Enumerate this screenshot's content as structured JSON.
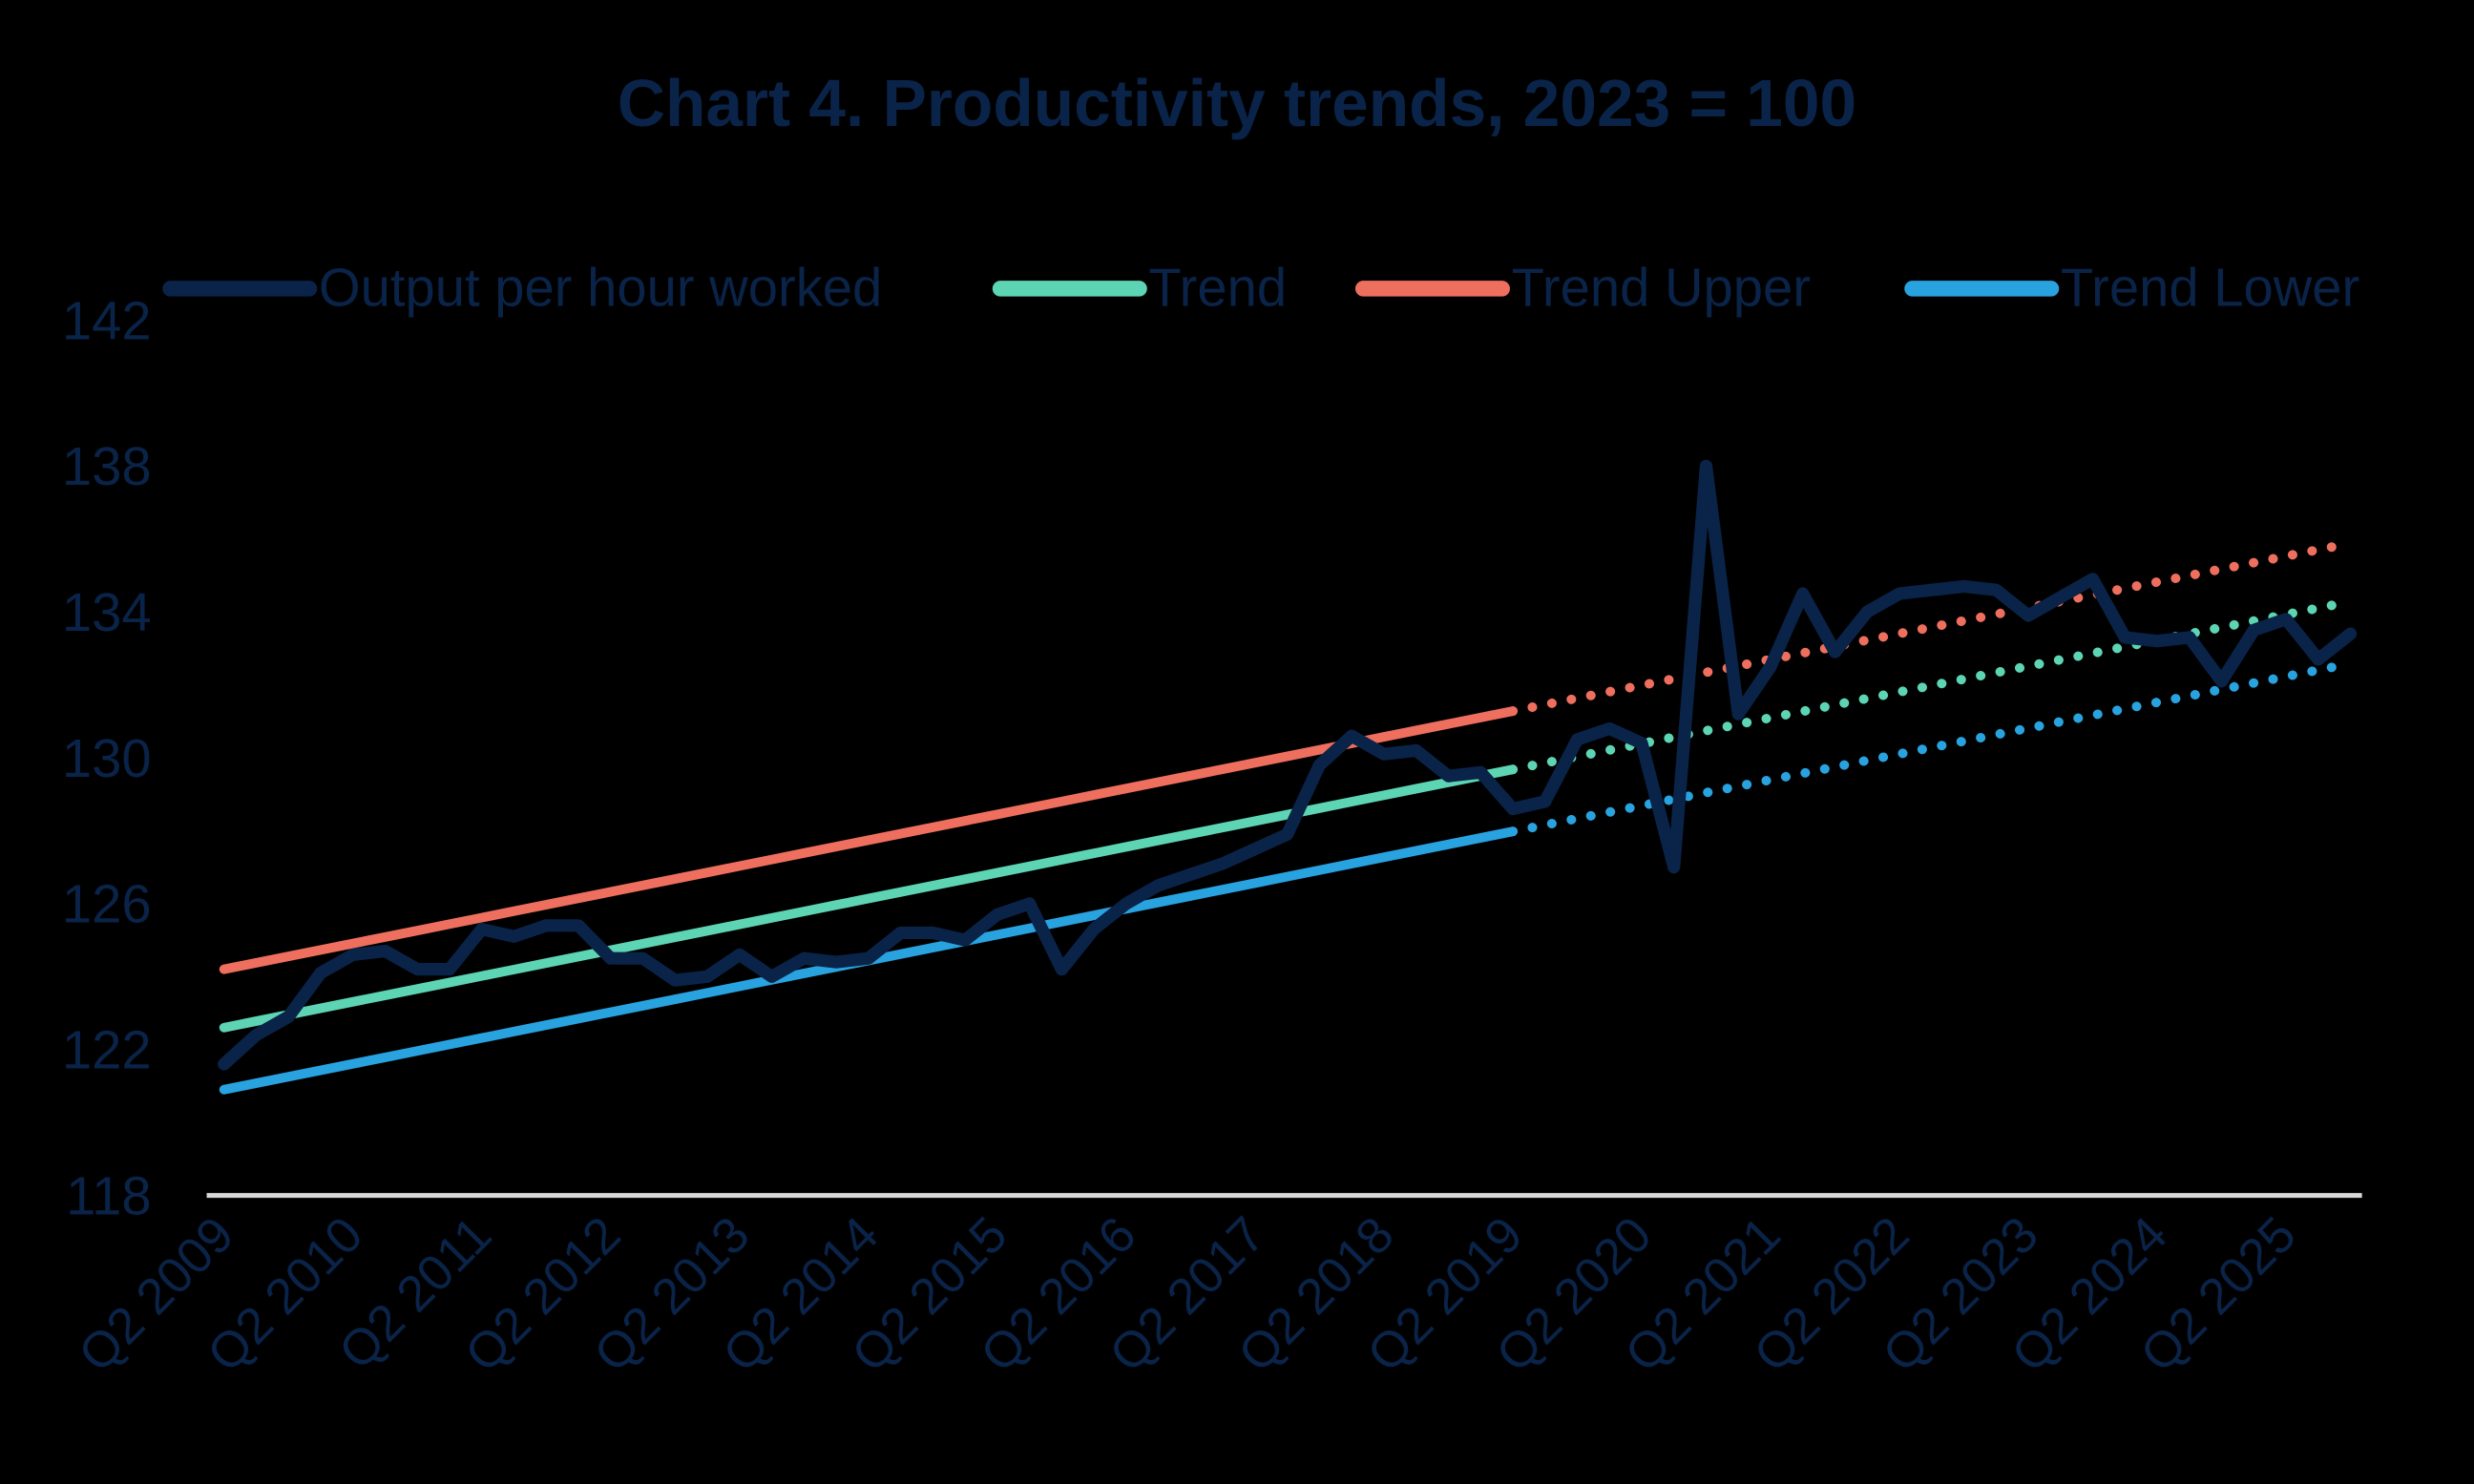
{
  "chart_data": {
    "type": "line",
    "title": "Chart 4. Productivity trends, 2023 = 100",
    "xlabel": "",
    "ylabel": "",
    "ylim": [
      118,
      142
    ],
    "yticks": [
      118,
      122,
      126,
      130,
      134,
      138,
      142
    ],
    "xtick_labels": [
      "Q2 2009",
      "Q2 2010",
      "Q2 2011",
      "Q2 2012",
      "Q2 2013",
      "Q2 2014",
      "Q2 2015",
      "Q2 2016",
      "Q2 2017",
      "Q2 2018",
      "Q2 2019",
      "Q2 2020",
      "Q2 2021",
      "Q2 2022",
      "Q2 2023",
      "Q2 2024",
      "Q2 2025"
    ],
    "grid": false,
    "legend_position": "top",
    "x_start": "Q2 2009",
    "n_points": 67,
    "trend_solid_until_index": 40,
    "series": [
      {
        "name": "Output per hour worked",
        "color": "#0a2348",
        "style": "solid",
        "values": [
          121.6,
          122.4,
          122.9,
          124.1,
          124.6,
          124.7,
          124.2,
          124.2,
          125.3,
          125.1,
          125.4,
          125.4,
          124.5,
          124.5,
          123.9,
          124.0,
          124.6,
          124.0,
          124.5,
          124.4,
          124.5,
          125.2,
          125.2,
          125.0,
          125.7,
          126.0,
          124.2,
          125.3,
          126.0,
          126.5,
          126.8,
          127.1,
          127.5,
          127.9,
          129.8,
          130.6,
          130.1,
          130.2,
          129.5,
          129.6,
          128.6,
          128.8,
          130.5,
          130.8,
          130.4,
          127.0,
          138.0,
          131.2,
          132.5,
          134.5,
          132.9,
          134.0,
          134.5,
          134.6,
          134.7,
          134.6,
          133.9,
          134.4,
          134.9,
          133.3,
          133.2,
          133.3,
          132.1,
          133.5,
          133.8,
          132.7,
          133.4
        ]
      },
      {
        "name": "Trend",
        "color": "#5dd5b4",
        "style": "solid-then-dotted",
        "start": 122.6,
        "slope_per_quarter": 0.177
      },
      {
        "name": "Trend Upper",
        "color": "#ef6f5e",
        "style": "solid-then-dotted",
        "start": 124.2,
        "slope_per_quarter": 0.177
      },
      {
        "name": "Trend Lower",
        "color": "#28a3e0",
        "style": "solid-then-dotted",
        "start": 120.9,
        "slope_per_quarter": 0.177
      }
    ]
  },
  "legend": {
    "items": [
      {
        "label": "Output per hour worked",
        "color": "#0a2348"
      },
      {
        "label": "Trend",
        "color": "#5dd5b4"
      },
      {
        "label": "Trend Upper",
        "color": "#ef6f5e"
      },
      {
        "label": "Trend Lower",
        "color": "#28a3e0"
      }
    ]
  },
  "colors": {
    "background": "#000000",
    "text": "#0a2348",
    "axis_line": "#d9d9d9"
  }
}
